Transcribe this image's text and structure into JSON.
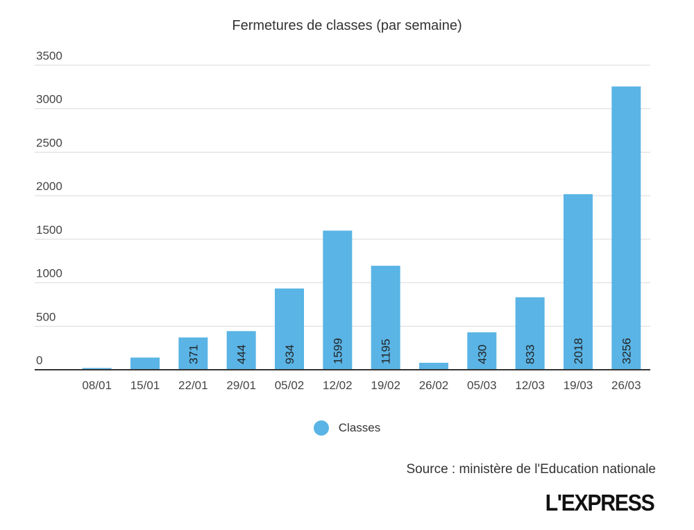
{
  "chart_data": {
    "type": "bar",
    "title": "Fermetures de classes (par semaine)",
    "xlabel": "",
    "ylabel": "",
    "categories": [
      "08/01",
      "15/01",
      "22/01",
      "29/01",
      "05/02",
      "12/02",
      "19/02",
      "26/02",
      "05/03",
      "12/03",
      "19/03",
      "26/03"
    ],
    "series": [
      {
        "name": "Classes",
        "color": "#5ab4e5",
        "values": [
          20,
          140,
          371,
          444,
          934,
          1599,
          1195,
          80,
          430,
          833,
          2018,
          3256
        ],
        "data_labels": [
          "",
          "",
          "371",
          "444",
          "934",
          "1599",
          "1195",
          "",
          "430",
          "833",
          "2018",
          "3256"
        ]
      }
    ],
    "ylim": [
      0,
      3500
    ],
    "yticks": [
      "0",
      "500",
      "1000",
      "1500",
      "2000",
      "2500",
      "3000",
      "3500"
    ],
    "grid": true,
    "legend_position": "bottom-center"
  },
  "source": "Source : ministère de l'Education nationale",
  "logo_text": "L'EXPRESS"
}
